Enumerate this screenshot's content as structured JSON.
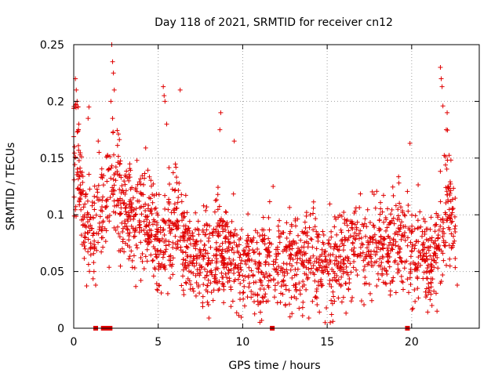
{
  "chart_data": {
    "type": "scatter",
    "title": "Day 118 of 2021, SRMTID for receiver cn12",
    "xlabel": "GPS time / hours",
    "ylabel": "SRMTID / TECUs",
    "xlim": [
      0,
      24
    ],
    "ylim": [
      0,
      0.25
    ],
    "xticks": [
      0,
      5,
      10,
      15,
      20
    ],
    "xtick_labels": [
      "0",
      "5",
      "10",
      "15",
      "20"
    ],
    "yticks": [
      0,
      0.05,
      0.1,
      0.15,
      0.2,
      0.25
    ],
    "ytick_labels": [
      "0",
      "0.05",
      "0.1",
      "0.15",
      "0.2",
      "0.25"
    ],
    "grid": true,
    "marker": "plus",
    "color": "#e00000",
    "series": [
      {
        "name": "SRMTID",
        "profile_x": [
          0.0,
          0.2,
          0.4,
          0.7,
          1.0,
          1.3,
          1.6,
          2.0,
          2.4,
          2.8,
          3.2,
          3.6,
          4.0,
          4.5,
          5.0,
          5.5,
          6.0,
          6.5,
          7.0,
          7.5,
          8.0,
          8.5,
          9.0,
          9.5,
          10.0,
          10.5,
          11.0,
          11.5,
          12.0,
          12.5,
          13.0,
          13.5,
          14.0,
          14.5,
          15.0,
          15.5,
          16.0,
          16.5,
          17.0,
          17.5,
          18.0,
          18.5,
          19.0,
          19.5,
          19.8,
          20.2,
          20.6,
          21.0,
          21.4,
          21.8,
          22.0,
          22.3,
          22.6
        ],
        "profile_y": [
          0.165,
          0.155,
          0.12,
          0.09,
          0.085,
          0.08,
          0.1,
          0.11,
          0.13,
          0.11,
          0.1,
          0.09,
          0.1,
          0.095,
          0.075,
          0.08,
          0.095,
          0.08,
          0.065,
          0.06,
          0.065,
          0.07,
          0.075,
          0.06,
          0.06,
          0.055,
          0.05,
          0.055,
          0.065,
          0.055,
          0.06,
          0.065,
          0.07,
          0.06,
          0.055,
          0.055,
          0.06,
          0.07,
          0.075,
          0.075,
          0.07,
          0.07,
          0.075,
          0.08,
          0.075,
          0.065,
          0.06,
          0.06,
          0.07,
          0.075,
          0.12,
          0.105,
          0.085
        ],
        "spread": 0.025,
        "spikes": [
          {
            "x": 0.1,
            "y": 0.22
          },
          {
            "x": 0.15,
            "y": 0.21
          },
          {
            "x": 0.2,
            "y": 0.2
          },
          {
            "x": 0.25,
            "y": 0.195
          },
          {
            "x": 0.05,
            "y": 0.16
          },
          {
            "x": 0.3,
            "y": 0.18
          },
          {
            "x": 0.9,
            "y": 0.195
          },
          {
            "x": 0.85,
            "y": 0.185
          },
          {
            "x": 1.45,
            "y": 0.165
          },
          {
            "x": 1.5,
            "y": 0.155
          },
          {
            "x": 2.25,
            "y": 0.25
          },
          {
            "x": 2.3,
            "y": 0.235
          },
          {
            "x": 2.35,
            "y": 0.225
          },
          {
            "x": 2.4,
            "y": 0.21
          },
          {
            "x": 2.2,
            "y": 0.2
          },
          {
            "x": 2.3,
            "y": 0.185
          },
          {
            "x": 5.3,
            "y": 0.213
          },
          {
            "x": 5.35,
            "y": 0.205
          },
          {
            "x": 5.4,
            "y": 0.2
          },
          {
            "x": 6.3,
            "y": 0.21
          },
          {
            "x": 5.5,
            "y": 0.18
          },
          {
            "x": 8.7,
            "y": 0.19
          },
          {
            "x": 8.65,
            "y": 0.175
          },
          {
            "x": 9.5,
            "y": 0.165
          },
          {
            "x": 1.3,
            "y": 0.038
          },
          {
            "x": 1.2,
            "y": 0.05
          },
          {
            "x": 8.0,
            "y": 0.009
          },
          {
            "x": 12.8,
            "y": 0.01
          },
          {
            "x": 11.8,
            "y": 0.125
          },
          {
            "x": 19.9,
            "y": 0.163
          },
          {
            "x": 21.7,
            "y": 0.23
          },
          {
            "x": 21.75,
            "y": 0.22
          },
          {
            "x": 21.8,
            "y": 0.213
          },
          {
            "x": 21.85,
            "y": 0.196
          },
          {
            "x": 22.1,
            "y": 0.19
          },
          {
            "x": 22.05,
            "y": 0.175
          },
          {
            "x": 21.2,
            "y": 0.02
          },
          {
            "x": 21.5,
            "y": 0.015
          },
          {
            "x": 22.7,
            "y": 0.038
          }
        ],
        "zero_values_at_x": [
          1.3,
          1.75,
          1.85,
          1.95,
          2.05,
          2.15,
          11.75,
          19.75
        ]
      }
    ]
  }
}
